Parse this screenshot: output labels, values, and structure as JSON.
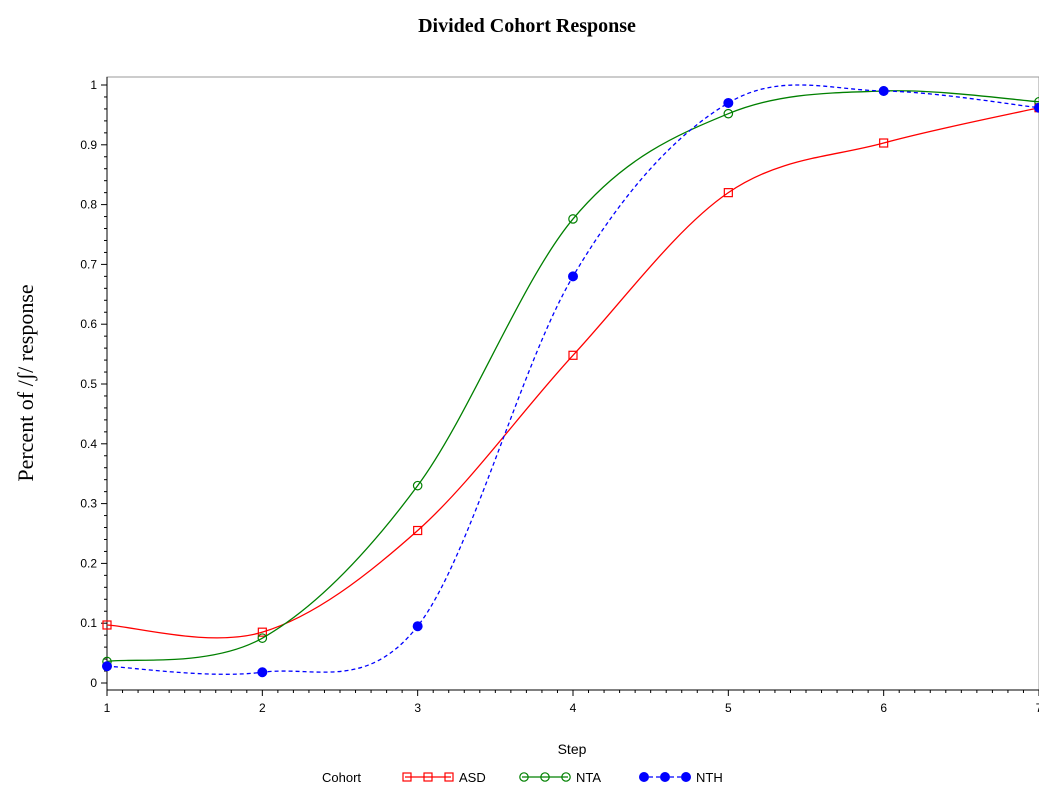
{
  "chart_data": {
    "type": "line",
    "title": "Divided Cohort Response",
    "xlabel": "Step",
    "ylabel": "Percent of /ʃ/ response",
    "xlim": [
      1,
      7
    ],
    "ylim": [
      0,
      1
    ],
    "x_ticks": [
      "1",
      "2",
      "3",
      "4",
      "5",
      "6",
      "7"
    ],
    "y_ticks": [
      "0",
      "0.1",
      "0.2",
      "0.3",
      "0.4",
      "0.5",
      "0.6",
      "0.7",
      "0.8",
      "0.9",
      "1"
    ],
    "x": [
      1,
      2,
      3,
      4,
      5,
      6,
      7
    ],
    "legend": {
      "title": "Cohort",
      "placement": "bottom"
    },
    "series": [
      {
        "name": "ASD",
        "color": "#ff0000",
        "marker": "open-square",
        "line": "solid",
        "values": [
          0.097,
          0.085,
          0.255,
          0.548,
          0.82,
          0.903,
          0.962
        ]
      },
      {
        "name": "NTA",
        "color": "#008000",
        "marker": "open-circle",
        "line": "solid",
        "values": [
          0.036,
          0.075,
          0.33,
          0.776,
          0.952,
          0.99,
          0.972
        ]
      },
      {
        "name": "NTH",
        "color": "#0000ff",
        "marker": "filled-circle",
        "line": "dashed",
        "values": [
          0.028,
          0.018,
          0.095,
          0.68,
          0.97,
          0.99,
          0.962
        ]
      }
    ]
  }
}
